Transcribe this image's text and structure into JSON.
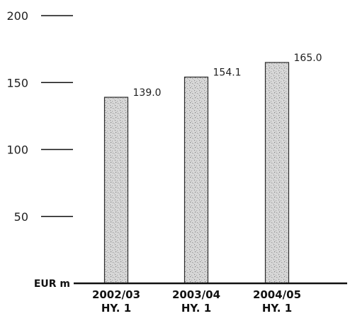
{
  "chart_data": {
    "type": "bar",
    "categories": [
      [
        "2002/03",
        "HY. 1"
      ],
      [
        "2003/04",
        "HY. 1"
      ],
      [
        "2004/05",
        "HY. 1"
      ]
    ],
    "values": [
      139.0,
      154.1,
      165.0
    ],
    "value_labels": [
      "139.0",
      "154.1",
      "165.0"
    ],
    "title": "",
    "xlabel": "",
    "ylabel": "EUR m",
    "ylim": [
      0,
      200
    ],
    "yticks": [
      50,
      100,
      150,
      200
    ],
    "ytick_labels": [
      "50",
      "100",
      "150",
      "200"
    ],
    "grid": false,
    "colors": {
      "bar_fill": "#d6d6d6",
      "bar_texture": "#9a9a9a",
      "bar_outline": "#2a2a2a",
      "axis": "#111111"
    }
  }
}
